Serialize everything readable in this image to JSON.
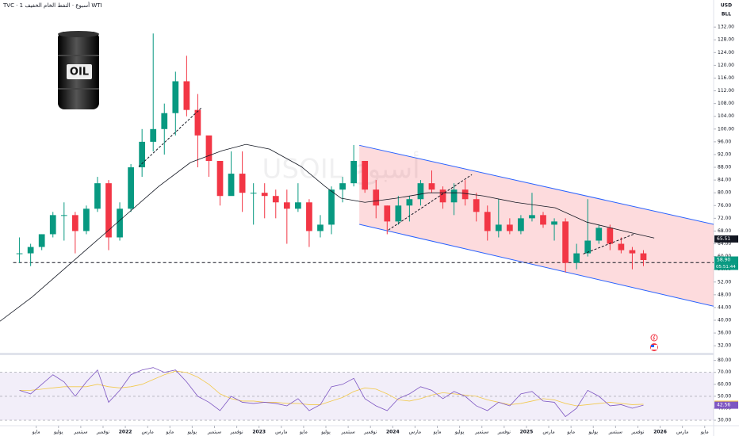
{
  "header": {
    "symbol_line": "TVC · 1 أسبوع · النفط الخام الخفيف WTI",
    "currency": "USD",
    "unit": "BLL"
  },
  "logo": {
    "text": "OIL"
  },
  "chart_data": {
    "type": "candlestick",
    "watermark": "USOIL أسبوع",
    "xlim": [
      0.75,
      64.8
    ],
    "xticks": [
      {
        "value": 4,
        "label": "مايو"
      },
      {
        "value": 6,
        "label": "يوليو"
      },
      {
        "value": 8,
        "label": "سبتمبر"
      },
      {
        "value": 10,
        "label": "نوفمبر"
      },
      {
        "value": 12,
        "label": "2022"
      },
      {
        "value": 14,
        "label": "مارس"
      },
      {
        "value": 16,
        "label": "مايو"
      },
      {
        "value": 18,
        "label": "يوليو"
      },
      {
        "value": 20,
        "label": "سبتمبر"
      },
      {
        "value": 22,
        "label": "نوفمبر"
      },
      {
        "value": 24,
        "label": "2023"
      },
      {
        "value": 26,
        "label": "مارس"
      },
      {
        "value": 28,
        "label": "مايو"
      },
      {
        "value": 30,
        "label": "يوليو"
      },
      {
        "value": 32,
        "label": "سبتمبر"
      },
      {
        "value": 34,
        "label": "نوفمبر"
      },
      {
        "value": 36,
        "label": "2024"
      },
      {
        "value": 38,
        "label": "مارس"
      },
      {
        "value": 40,
        "label": "مايو"
      },
      {
        "value": 42,
        "label": "يوليو"
      },
      {
        "value": 44,
        "label": "سبتمبر"
      },
      {
        "value": 46,
        "label": "نوفمبر"
      },
      {
        "value": 48,
        "label": "2025"
      },
      {
        "value": 50,
        "label": "مارس"
      },
      {
        "value": 52,
        "label": "مايو"
      },
      {
        "value": 54,
        "label": "يوليو"
      },
      {
        "value": 56,
        "label": "سبتمبر"
      },
      {
        "value": 58,
        "label": "نوفمبر"
      },
      {
        "value": 60,
        "label": "2026"
      },
      {
        "value": 62,
        "label": "مارس"
      },
      {
        "value": 64,
        "label": "مايو"
      }
    ],
    "ylim": [
      29.8,
      140.5
    ],
    "yticks": [
      {
        "value": 32,
        "label": "32.00"
      },
      {
        "value": 36,
        "label": "36.00"
      },
      {
        "value": 40,
        "label": "40.00"
      },
      {
        "value": 44,
        "label": "44.00"
      },
      {
        "value": 48,
        "label": "48.00"
      },
      {
        "value": 52,
        "label": "52.00"
      },
      {
        "value": 56,
        "label": "56.00"
      },
      {
        "value": 60,
        "label": "60.00"
      },
      {
        "value": 64,
        "label": "64.00"
      },
      {
        "value": 68,
        "label": "68.00"
      },
      {
        "value": 72,
        "label": "72.00"
      },
      {
        "value": 76,
        "label": "76.00"
      },
      {
        "value": 80,
        "label": "80.00"
      },
      {
        "value": 84,
        "label": "84.00"
      },
      {
        "value": 88,
        "label": "88.00"
      },
      {
        "value": 92,
        "label": "92.00"
      },
      {
        "value": 96,
        "label": "96.00"
      },
      {
        "value": 100,
        "label": "100.00"
      },
      {
        "value": 104,
        "label": "104.00"
      },
      {
        "value": 108,
        "label": "108.00"
      },
      {
        "value": 112,
        "label": "112.00"
      },
      {
        "value": 116,
        "label": "116.00"
      },
      {
        "value": 120,
        "label": "120.00"
      },
      {
        "value": 124,
        "label": "124.00"
      },
      {
        "value": 128,
        "label": "128.00"
      },
      {
        "value": 132,
        "label": "132.00"
      }
    ],
    "grid": false,
    "up_color": "#089981",
    "down_color": "#f23645",
    "x": [
      2.5,
      3.5,
      4.5,
      5.5,
      6.5,
      7.5,
      8.5,
      9.5,
      10.5,
      11.5,
      12.5,
      13.5,
      14.5,
      15.5,
      16.5,
      17.5,
      18.5,
      19.5,
      20.5,
      21.5,
      22.5,
      23.5,
      24.5,
      25.5,
      26.5,
      27.5,
      28.5,
      29.5,
      30.5,
      31.5,
      32.5,
      33.5,
      34.5,
      35.5,
      36.5,
      37.5,
      38.5,
      39.5,
      40.5,
      41.5,
      42.5,
      43.5,
      44.5,
      45.5,
      46.5,
      47.5,
      48.5,
      49.5,
      50.5,
      51.5,
      52.5,
      53.5,
      54.5,
      55.5,
      56.5,
      57.5,
      58.5
    ],
    "open": [
      61,
      61,
      63,
      67,
      73,
      73,
      68,
      75,
      83,
      66,
      75,
      88,
      96,
      100,
      105,
      115,
      106,
      98,
      90,
      79,
      86,
      80,
      80,
      79,
      77,
      75,
      77,
      68,
      70,
      81,
      83,
      90,
      81,
      76,
      71,
      76,
      78,
      83,
      81,
      77,
      81,
      78,
      74,
      68,
      70,
      68,
      72,
      73,
      70,
      71,
      58,
      61,
      65,
      69,
      64,
      62,
      61
    ],
    "high": [
      66,
      64,
      67,
      74,
      77,
      74,
      76,
      85,
      84,
      77,
      89,
      100,
      130,
      108,
      118,
      123,
      111,
      97,
      90,
      93,
      93,
      83,
      83,
      81,
      81,
      83,
      78,
      73,
      82,
      85,
      95,
      90,
      84,
      76,
      79,
      79,
      84,
      87,
      82,
      83,
      84,
      80,
      76,
      78,
      72,
      73,
      80,
      74,
      72,
      72,
      64,
      78,
      70,
      70,
      66,
      63,
      62
    ],
    "low": [
      58,
      57,
      62,
      66,
      65,
      61,
      67,
      74,
      62,
      65,
      74,
      85,
      93,
      92,
      98,
      104,
      88,
      85,
      76,
      80,
      74,
      70,
      72,
      72,
      64,
      74,
      63,
      66,
      67,
      77,
      82,
      80,
      72,
      67,
      70,
      71,
      76,
      80,
      75,
      73,
      76,
      71,
      65,
      66,
      67,
      67,
      71,
      69,
      65,
      55,
      56,
      60,
      64,
      62,
      61,
      56,
      57
    ],
    "close": [
      61,
      63,
      67,
      73,
      73,
      68,
      75,
      83,
      66,
      75,
      88,
      96,
      100,
      105,
      115,
      106,
      98,
      90,
      79,
      86,
      80,
      80,
      79,
      77,
      75,
      77,
      68,
      70,
      81,
      83,
      90,
      81,
      76,
      71,
      76,
      78,
      83,
      81,
      77,
      81,
      78,
      74,
      68,
      70,
      68,
      72,
      73,
      70,
      71,
      58,
      61,
      65,
      69,
      64,
      62,
      61,
      58.9
    ],
    "ma": {
      "color": "#131722",
      "x": [
        0.75,
        3.6,
        6.45,
        9.3,
        12.14,
        14.99,
        17.84,
        20.68,
        22.82,
        24.95,
        27.8,
        29.93,
        31.36,
        33.5,
        36.34,
        39.19,
        42.03,
        44.17,
        47.02,
        50.58,
        53.42,
        56.98,
        59.47
      ],
      "values": [
        39.7,
        47.2,
        55.9,
        64.6,
        73.3,
        82,
        89.5,
        93.2,
        95.2,
        93.7,
        88.2,
        82,
        78.3,
        77,
        78.3,
        80,
        80,
        79,
        77,
        75.3,
        70.8,
        67.8,
        65.8
      ]
    },
    "ma_last": {
      "value": 65.51,
      "label": "65.51"
    },
    "last_price": {
      "value": 58.9,
      "label": "58.90"
    },
    "countdown": "05:51:44",
    "level": 58.1,
    "channel": {
      "x": [
        33,
        64.8
      ],
      "upper": [
        94.9,
        70.1
      ],
      "lower": [
        70.1,
        44.4
      ],
      "fill": "rgba(242,54,69,0.18)",
      "line_color": "#2962ff"
    },
    "trendlines": [
      {
        "x": [
          13.2,
          18.9
        ],
        "y": [
          88.2,
          106.9
        ]
      },
      {
        "x": [
          35.6,
          43.1
        ],
        "y": [
          68.3,
          85.7
        ]
      },
      {
        "x": [
          53.1,
          57.7
        ],
        "y": [
          60.8,
          67.1
        ]
      }
    ],
    "rsi": {
      "ylim": [
        25.4,
        84.4
      ],
      "yticks": [
        {
          "value": 30,
          "label": "30.00"
        },
        {
          "value": 40,
          "label": "40.00"
        },
        {
          "value": 50,
          "label": "50.00"
        },
        {
          "value": 60,
          "label": "60.00"
        },
        {
          "value": 70,
          "label": "70.00"
        },
        {
          "value": 80,
          "label": "80.00"
        }
      ],
      "band": [
        30,
        70
      ],
      "mid": 50,
      "color": "#7e57c2",
      "ma_color": "#f2c94c",
      "values": [
        55,
        52,
        60,
        68,
        62,
        50,
        62,
        72,
        45,
        55,
        68,
        72,
        74,
        70,
        72,
        62,
        50,
        45,
        38,
        50,
        45,
        44,
        45,
        44,
        42,
        48,
        38,
        43,
        58,
        60,
        65,
        48,
        42,
        38,
        48,
        52,
        58,
        55,
        48,
        54,
        50,
        42,
        38,
        45,
        42,
        52,
        54,
        46,
        45,
        33,
        40,
        55,
        50,
        42,
        43,
        40,
        42.56
      ],
      "ma_values": [
        55,
        55,
        56,
        57,
        58,
        58,
        58,
        60,
        58,
        57,
        58,
        60,
        64,
        68,
        71,
        70,
        66,
        60,
        52,
        48,
        46,
        46,
        45,
        45,
        44,
        44,
        43,
        43,
        46,
        49,
        54,
        57,
        56,
        52,
        47,
        46,
        48,
        51,
        53,
        52,
        51,
        50,
        47,
        45,
        43,
        44,
        46,
        48,
        47,
        44,
        42,
        43,
        44,
        45,
        44,
        43,
        43.34
      ],
      "ma_last": {
        "value": 43.34,
        "label": "43.34"
      },
      "last": {
        "value": 42.56,
        "label": "42.56"
      }
    }
  }
}
